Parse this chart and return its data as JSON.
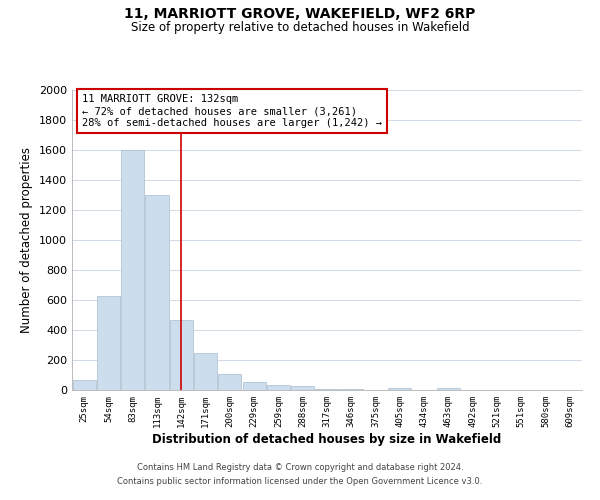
{
  "title": "11, MARRIOTT GROVE, WAKEFIELD, WF2 6RP",
  "subtitle": "Size of property relative to detached houses in Wakefield",
  "xlabel": "Distribution of detached houses by size in Wakefield",
  "ylabel": "Number of detached properties",
  "bar_labels": [
    "25sqm",
    "54sqm",
    "83sqm",
    "113sqm",
    "142sqm",
    "171sqm",
    "200sqm",
    "229sqm",
    "259sqm",
    "288sqm",
    "317sqm",
    "346sqm",
    "375sqm",
    "405sqm",
    "434sqm",
    "463sqm",
    "492sqm",
    "521sqm",
    "551sqm",
    "580sqm",
    "609sqm"
  ],
  "bar_values": [
    65,
    630,
    1600,
    1300,
    470,
    250,
    105,
    55,
    35,
    25,
    10,
    5,
    0,
    15,
    0,
    15,
    0,
    0,
    0,
    0,
    0
  ],
  "bar_color": "#ccdded",
  "bar_edge_color": "#aabbcc",
  "vline_x_index": 4,
  "vline_color": "#cc0000",
  "ylim": [
    0,
    2000
  ],
  "yticks": [
    0,
    200,
    400,
    600,
    800,
    1000,
    1200,
    1400,
    1600,
    1800,
    2000
  ],
  "annotation_title": "11 MARRIOTT GROVE: 132sqm",
  "annotation_line1": "← 72% of detached houses are smaller (3,261)",
  "annotation_line2": "28% of semi-detached houses are larger (1,242) →",
  "annotation_box_color": "#ffffff",
  "annotation_box_edge": "#cc0000",
  "footer_line1": "Contains HM Land Registry data © Crown copyright and database right 2024.",
  "footer_line2": "Contains public sector information licensed under the Open Government Licence v3.0.",
  "background_color": "#ffffff",
  "grid_color": "#c8d4e0"
}
